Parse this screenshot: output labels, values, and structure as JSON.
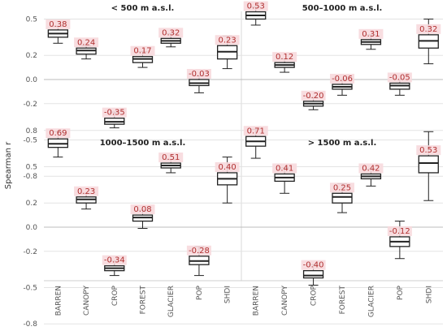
{
  "chart_data": {
    "type": "box",
    "ylabel": "Spearman r",
    "categories": [
      "BARREN",
      "CANOPY",
      "CROP",
      "FOREST",
      "GLACIER",
      "POP",
      "SHDI"
    ],
    "yticks": [
      "0.8",
      "0.5",
      "0.2",
      "0.0",
      "-0.2",
      "-0.5",
      "-0.8"
    ],
    "ylim": [
      -0.9,
      0.9
    ],
    "panels": [
      {
        "title": "< 500 m a.s.l.",
        "labels": [
          "0.38",
          "0.24",
          "-0.35",
          "0.17",
          "0.32",
          "-0.03",
          "0.23"
        ],
        "boxes": [
          {
            "median": 0.38,
            "q1": 0.35,
            "q3": 0.41,
            "wlo": 0.3,
            "whi": 0.44
          },
          {
            "median": 0.24,
            "q1": 0.21,
            "q3": 0.26,
            "wlo": 0.17,
            "whi": 0.28
          },
          {
            "median": -0.35,
            "q1": -0.37,
            "q3": -0.32,
            "wlo": -0.4,
            "whi": -0.27
          },
          {
            "median": 0.17,
            "q1": 0.14,
            "q3": 0.19,
            "wlo": 0.1,
            "whi": 0.23
          },
          {
            "median": 0.32,
            "q1": 0.3,
            "q3": 0.34,
            "wlo": 0.27,
            "whi": 0.38
          },
          {
            "median": -0.03,
            "q1": -0.05,
            "q3": 0.0,
            "wlo": -0.11,
            "whi": 0.03
          },
          {
            "median": 0.23,
            "q1": 0.17,
            "q3": 0.28,
            "wlo": 0.09,
            "whi": 0.36
          }
        ]
      },
      {
        "title": "500–1000 m a.s.l.",
        "labels": [
          "0.53",
          "0.12",
          "-0.20",
          "-0.06",
          "0.31",
          "-0.05",
          "0.32"
        ],
        "boxes": [
          {
            "median": 0.53,
            "q1": 0.5,
            "q3": 0.56,
            "wlo": 0.45,
            "whi": 0.6
          },
          {
            "median": 0.12,
            "q1": 0.1,
            "q3": 0.14,
            "wlo": 0.06,
            "whi": 0.17
          },
          {
            "median": -0.2,
            "q1": -0.22,
            "q3": -0.18,
            "wlo": -0.25,
            "whi": -0.15
          },
          {
            "median": -0.06,
            "q1": -0.08,
            "q3": -0.04,
            "wlo": -0.13,
            "whi": 0.0
          },
          {
            "median": 0.31,
            "q1": 0.29,
            "q3": 0.33,
            "wlo": 0.25,
            "whi": 0.37
          },
          {
            "median": -0.05,
            "q1": -0.08,
            "q3": -0.03,
            "wlo": -0.13,
            "whi": 0.0
          },
          {
            "median": 0.32,
            "q1": 0.26,
            "q3": 0.37,
            "wlo": 0.13,
            "whi": 0.5
          }
        ]
      },
      {
        "title": "1000–1500 m a.s.l.",
        "labels": [
          "0.69",
          "0.23",
          "-0.34",
          "0.08",
          "0.51",
          "-0.28",
          "0.40"
        ],
        "boxes": [
          {
            "median": 0.69,
            "q1": 0.66,
            "q3": 0.73,
            "wlo": 0.58,
            "whi": 0.79
          },
          {
            "median": 0.23,
            "q1": 0.2,
            "q3": 0.25,
            "wlo": 0.15,
            "whi": 0.28
          },
          {
            "median": -0.34,
            "q1": -0.36,
            "q3": -0.32,
            "wlo": -0.4,
            "whi": -0.28
          },
          {
            "median": 0.08,
            "q1": 0.05,
            "q3": 0.1,
            "wlo": -0.01,
            "whi": 0.14
          },
          {
            "median": 0.51,
            "q1": 0.49,
            "q3": 0.53,
            "wlo": 0.45,
            "whi": 0.56
          },
          {
            "median": -0.28,
            "q1": -0.31,
            "q3": -0.24,
            "wlo": -0.4,
            "whi": -0.16
          },
          {
            "median": 0.4,
            "q1": 0.35,
            "q3": 0.45,
            "wlo": 0.2,
            "whi": 0.58
          }
        ]
      },
      {
        "title": "> 1500 m a.s.l.",
        "labels": [
          "0.71",
          "0.41",
          "-0.40",
          "0.25",
          "0.42",
          "-0.12",
          "0.53"
        ],
        "boxes": [
          {
            "median": 0.71,
            "q1": 0.67,
            "q3": 0.75,
            "wlo": 0.57,
            "whi": 0.81
          },
          {
            "median": 0.41,
            "q1": 0.38,
            "q3": 0.44,
            "wlo": 0.28,
            "whi": 0.49
          },
          {
            "median": -0.4,
            "q1": -0.42,
            "q3": -0.36,
            "wlo": -0.48,
            "whi": -0.31
          },
          {
            "median": 0.25,
            "q1": 0.2,
            "q3": 0.28,
            "wlo": 0.12,
            "whi": 0.36
          },
          {
            "median": 0.42,
            "q1": 0.4,
            "q3": 0.44,
            "wlo": 0.34,
            "whi": 0.48
          },
          {
            "median": -0.12,
            "q1": -0.16,
            "q3": -0.08,
            "wlo": -0.26,
            "whi": 0.05
          },
          {
            "median": 0.53,
            "q1": 0.45,
            "q3": 0.59,
            "wlo": 0.22,
            "whi": 0.79
          }
        ]
      }
    ],
    "colors": {
      "box": "#ffffff",
      "line": "#222222",
      "label": "#b03030",
      "label_bg": "#f7d9dd",
      "grid": "#e3e3e3",
      "zero": "#bdbdbd"
    }
  }
}
